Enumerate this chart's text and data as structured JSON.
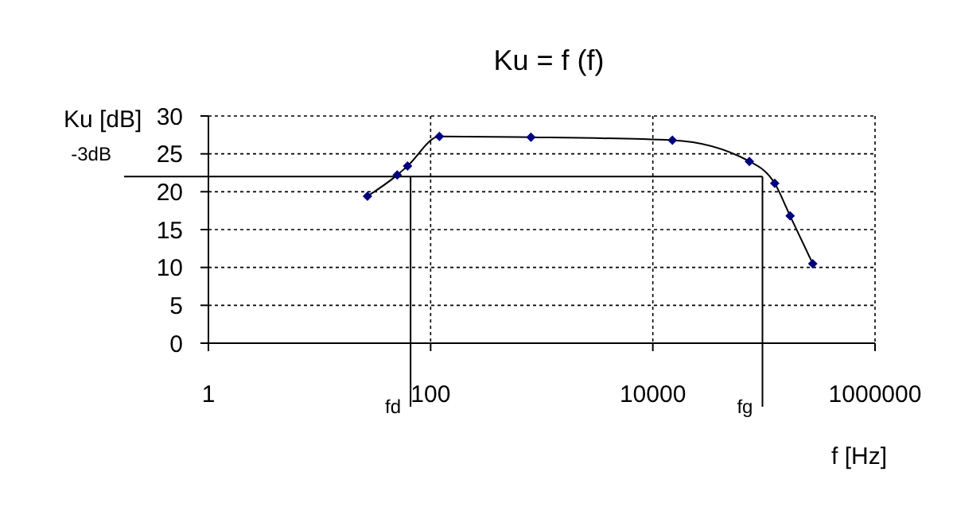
{
  "chart_data": {
    "type": "line",
    "title": "Ku = f (f)",
    "xlabel": "f [Hz]",
    "ylabel": "Ku [dB]",
    "log": "x",
    "xlim": [
      1,
      1000000
    ],
    "xticks": [
      1,
      100,
      10000,
      1000000
    ],
    "ylim": [
      0,
      30
    ],
    "yticks": [
      0,
      5,
      10,
      15,
      20,
      25,
      30
    ],
    "grid": true,
    "marker": "diamond",
    "line_style": "solid",
    "series": [
      {
        "color": "#000080",
        "x": [
          27,
          50,
          62,
          120,
          800,
          15000,
          74000,
          125000,
          172000,
          275000
        ],
        "values": [
          19.4,
          22.2,
          23.4,
          27.3,
          27.2,
          26.8,
          24.0,
          21.1,
          16.8,
          10.5
        ]
      }
    ],
    "ref_lines": [
      {
        "axis": "y",
        "value": 22,
        "label": "-3dB",
        "color": "#000000"
      },
      {
        "axis": "x",
        "value": 66,
        "label": "fd",
        "color": "#000000"
      },
      {
        "axis": "x",
        "value": 97000,
        "label": "fg",
        "color": "#000000"
      }
    ]
  }
}
